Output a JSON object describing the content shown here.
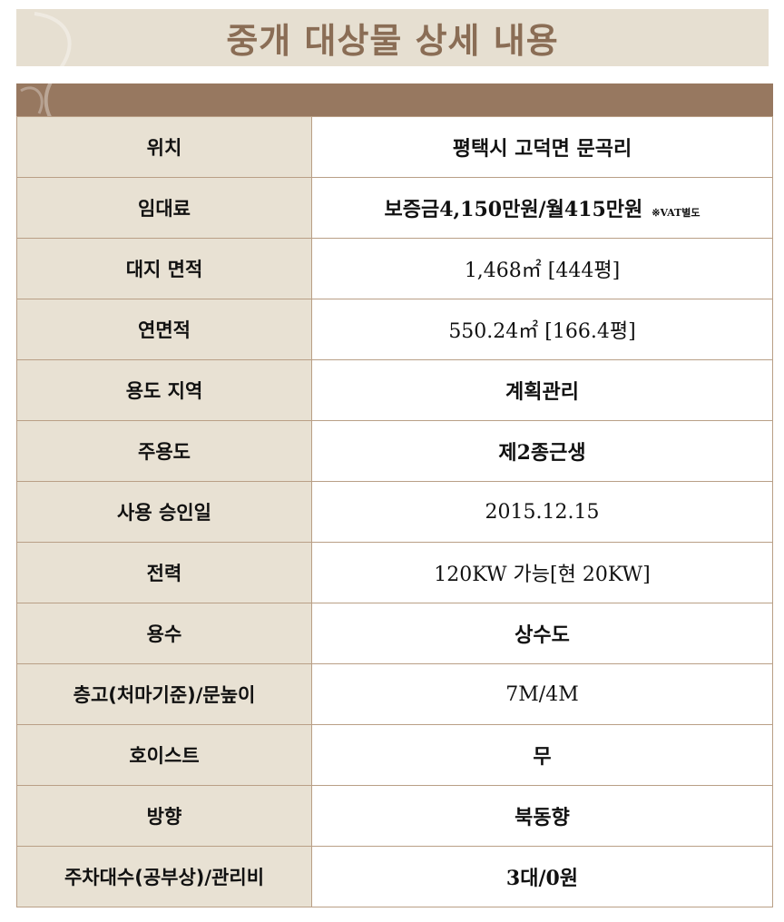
{
  "title": "중개 대상물 상세 내용",
  "colors": {
    "header_bar": "#977860",
    "label_bg": "#e8e1d3",
    "title_text": "#8a6d55",
    "border": "#b99f86"
  },
  "rows": [
    {
      "label": "위치",
      "value": "평택시 고덕면 문곡리"
    },
    {
      "label": "임대료",
      "value": "보증금4,150만원/월415만원",
      "note": "※VAT별도"
    },
    {
      "label": "대지 면적",
      "value": "1,468㎡ [444평]"
    },
    {
      "label": "연면적",
      "value": "550.24㎡ [166.4평]"
    },
    {
      "label": "용도 지역",
      "value": "계획관리"
    },
    {
      "label": "주용도",
      "value": "제2종근생"
    },
    {
      "label": "사용 승인일",
      "value": "2015.12.15"
    },
    {
      "label": "전력",
      "value": "120KW 가능[현 20KW]"
    },
    {
      "label": "용수",
      "value": "상수도"
    },
    {
      "label": "층고(처마기준)/문높이",
      "value": "7M/4M"
    },
    {
      "label": "호이스트",
      "value": "무"
    },
    {
      "label": "방향",
      "value": "북동향"
    },
    {
      "label": "주차대수(공부상)/관리비",
      "value": "3대/0원"
    }
  ]
}
